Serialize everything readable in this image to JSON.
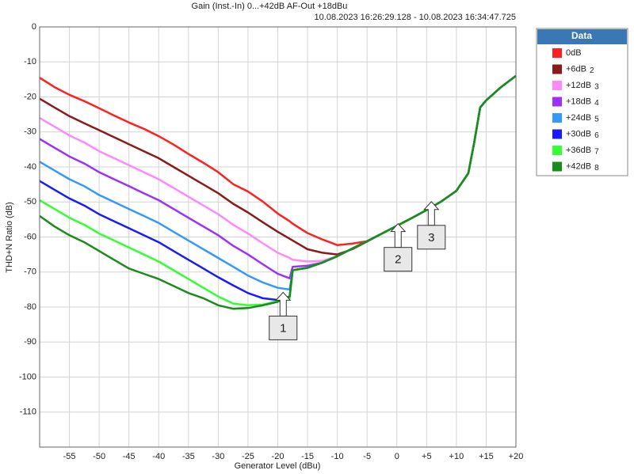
{
  "chart_data": {
    "type": "line",
    "title": "Gain (Inst.-In) 0...+42dB AF-Out +18dBu",
    "subtitle": "10.08.2023 16:26:29.128 - 10.08.2023 16:34:47.725",
    "x_label": "Generator Level (dBu)",
    "y_label": "THD+N Ratio (dB)",
    "legend_title": "Data",
    "grid": true,
    "xlim": [
      -60,
      20
    ],
    "ylim": [
      -120,
      0
    ],
    "xticks": [
      -55,
      -50,
      -45,
      -40,
      -35,
      -30,
      -25,
      -20,
      -15,
      -10,
      -5,
      0,
      {
        "value": 5,
        "label": "+5"
      },
      {
        "value": 10,
        "label": "+10"
      },
      {
        "value": 15,
        "label": "+15"
      },
      {
        "value": 20,
        "label": "+20"
      }
    ],
    "yticks": [
      0,
      -10,
      -20,
      -30,
      -40,
      -50,
      -60,
      -70,
      -80,
      -90,
      -100,
      -110
    ],
    "x": [
      -60,
      -57.5,
      -55,
      -52.5,
      -50,
      -47.5,
      -45,
      -42.5,
      -40,
      -37.5,
      -35,
      -32.5,
      -30,
      -27.5,
      -25,
      -22.5,
      -20,
      -18,
      -17.5,
      -15,
      -12.5,
      -10,
      -7.5,
      -5,
      -2.5,
      0,
      2.5,
      5,
      7.5,
      10,
      12,
      13,
      14,
      15,
      17.5,
      20
    ],
    "series": [
      {
        "name": "0dB",
        "color": "#ff2020",
        "values": [
          -14.5,
          -17.2,
          -19.4,
          -21.2,
          -23.2,
          -25.3,
          -27.3,
          -29.1,
          -31.2,
          -33.6,
          -36.3,
          -38.8,
          -41.5,
          -44.9,
          -47,
          -49.9,
          -53.3,
          -55.5,
          -56.2,
          -58.9,
          -60.7,
          -62.3,
          -61.9,
          -61.2,
          -59,
          -56.8,
          -54.6,
          -52.3,
          -49.8,
          -46.8,
          -41.8,
          -33,
          -23,
          -21,
          -17.2,
          -14
        ]
      },
      {
        "name": "+6dB",
        "index": "2",
        "color": "#8b1a1a",
        "values": [
          -20.5,
          -23,
          -25.5,
          -27.5,
          -29.5,
          -31.5,
          -33.5,
          -35.5,
          -37.5,
          -40,
          -42.5,
          -45,
          -47.5,
          -50.5,
          -53,
          -55.8,
          -58.5,
          -60.5,
          -61,
          -63.5,
          -64.5,
          -65,
          -63.5,
          -61.3,
          -59,
          -56.8,
          -54.6,
          -52.3,
          -49.8,
          -46.8,
          -41.8,
          -33,
          -23,
          -21,
          -17.2,
          -14
        ]
      },
      {
        "name": "+12dB",
        "index": "3",
        "color": "#ff88ff",
        "values": [
          -26,
          -28.5,
          -31,
          -33,
          -35.5,
          -37.5,
          -39.5,
          -41.5,
          -43.5,
          -46,
          -48.5,
          -51,
          -53.5,
          -56.5,
          -59,
          -61.8,
          -64.5,
          -66,
          -66.5,
          -67,
          -66.8,
          -65.5,
          -63.3,
          -61.2,
          -59,
          -56.8,
          -54.6,
          -52.3,
          -49.8,
          -46.8,
          -41.8,
          -33,
          -23,
          -21,
          -17.2,
          -14
        ]
      },
      {
        "name": "+18dB",
        "index": "4",
        "color": "#9b30ff",
        "values": [
          -32,
          -34.5,
          -37,
          -39,
          -41.5,
          -43.5,
          -45.5,
          -47.5,
          -49.5,
          -52,
          -54.5,
          -57,
          -59.5,
          -62.5,
          -65,
          -67.8,
          -70.5,
          -71.8,
          -68.5,
          -68.2,
          -67.3,
          -65.5,
          -63.3,
          -61.2,
          -59,
          -56.8,
          -54.6,
          -52.3,
          -49.8,
          -46.8,
          -41.8,
          -33,
          -23,
          -21,
          -17.2,
          -14
        ]
      },
      {
        "name": "+24dB",
        "index": "5",
        "color": "#3399ff",
        "values": [
          -38.5,
          -41,
          -43.5,
          -45.5,
          -48,
          -50,
          -52,
          -54,
          -56,
          -58.5,
          -61,
          -63.5,
          -66,
          -68.5,
          -71,
          -73,
          -74.5,
          -75,
          -69.5,
          -68.8,
          -67.3,
          -65.5,
          -63.3,
          -61.2,
          -59,
          -56.8,
          -54.6,
          -52.3,
          -49.8,
          -46.8,
          -41.8,
          -33,
          -23,
          -21,
          -17.2,
          -14
        ]
      },
      {
        "name": "+30dB",
        "index": "6",
        "color": "#1a1aff",
        "values": [
          -44,
          -46.5,
          -49,
          -51,
          -53.5,
          -55.5,
          -57.5,
          -59.5,
          -61.5,
          -64,
          -66.5,
          -69,
          -71.5,
          -73.8,
          -76,
          -77.5,
          -78,
          -77,
          -69.5,
          -68.8,
          -67.3,
          -65.5,
          -63.3,
          -61.2,
          -59,
          -56.8,
          -54.6,
          -52.3,
          -49.8,
          -46.8,
          -41.8,
          -33,
          -23,
          -21,
          -17.2,
          -14
        ]
      },
      {
        "name": "+36dB",
        "index": "7",
        "color": "#33ff33",
        "values": [
          -49.5,
          -52,
          -54.5,
          -56.5,
          -59,
          -61,
          -63,
          -65,
          -67,
          -69.5,
          -72,
          -74.5,
          -77,
          -79,
          -79.5,
          -79.3,
          -78.3,
          -77.5,
          -69.5,
          -68.8,
          -67.3,
          -65.5,
          -63.3,
          -61.2,
          -59,
          -56.8,
          -54.6,
          -52.3,
          -49.8,
          -46.8,
          -41.8,
          -33,
          -23,
          -21,
          -17.2,
          -14
        ]
      },
      {
        "name": "+42dB",
        "index": "8",
        "color": "#1a8c1a",
        "values": [
          -54,
          -57,
          -59.5,
          -61.5,
          -64,
          -66.5,
          -69,
          -70.5,
          -72,
          -74,
          -76,
          -77.5,
          -79.5,
          -80.5,
          -80.3,
          -79.5,
          -78.5,
          -77,
          -69.5,
          -68.8,
          -67.3,
          -65.5,
          -63.3,
          -61.2,
          -59,
          -56.8,
          -54.6,
          -52.3,
          -49.8,
          -46.8,
          -41.8,
          -33,
          -23,
          -21,
          -17.2,
          -14
        ]
      }
    ],
    "annotations": [
      {
        "text": "1",
        "x": -19.1,
        "y": -75.8
      },
      {
        "text": "2",
        "x": 0.2,
        "y": -56.2
      },
      {
        "text": "3",
        "x": 5.8,
        "y": -49.9
      }
    ]
  }
}
